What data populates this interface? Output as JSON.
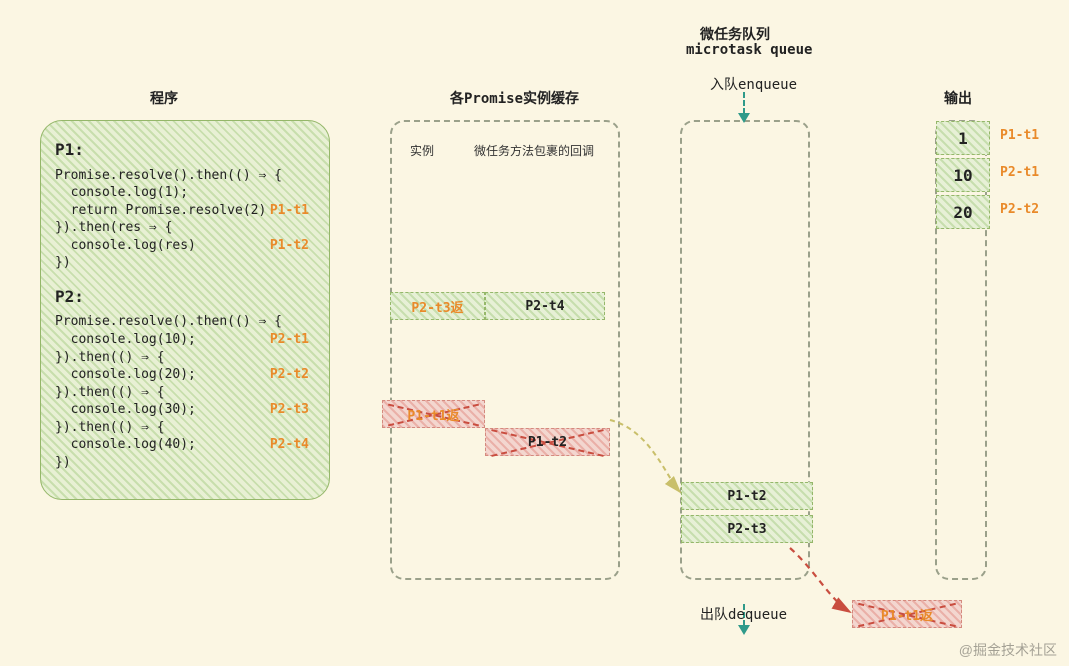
{
  "colors": {
    "bg": "#fbf6e3",
    "greenFill": "#e7f0d6",
    "greenBorder": "#95b76a",
    "redFill": "#f3d6cf",
    "redBorder": "#d48a7e",
    "orange": "#e98a2a",
    "dash": "#9aa08a",
    "teal": "#2f9a8a",
    "redDash": "#c94d3f",
    "yellowDash": "#c9bf6a"
  },
  "titles": {
    "program": "程序",
    "cache": "各Promise实例缓存",
    "queueZh": "微任务队列",
    "queueEn": "microtask queue",
    "enqueue": "入队enqueue",
    "dequeue": "出队dequeue",
    "output": "输出",
    "instance": "实例",
    "callback": "微任务方法包裹的回调"
  },
  "program": {
    "p1": {
      "header": "P1:",
      "lines": [
        {
          "text": "Promise.resolve().then(() ⇒ {"
        },
        {
          "text": "  console.log(1);"
        },
        {
          "text": "  return Promise.resolve(2)",
          "tag": "P1-t1"
        },
        {
          "text": "}).then(res ⇒ {"
        },
        {
          "text": "  console.log(res)",
          "tag": "P1-t2"
        },
        {
          "text": "})"
        }
      ]
    },
    "p2": {
      "header": "P2:",
      "lines": [
        {
          "text": "Promise.resolve().then(() ⇒ {"
        },
        {
          "text": "  console.log(10);",
          "tag": "P2-t1"
        },
        {
          "text": "}).then(() ⇒ {"
        },
        {
          "text": "  console.log(20);",
          "tag": "P2-t2"
        },
        {
          "text": "}).then(() ⇒ {"
        },
        {
          "text": "  console.log(30);",
          "tag": "P2-t3"
        },
        {
          "text": "}).then(() ⇒ {"
        },
        {
          "text": "  console.log(40);",
          "tag": "P2-t4"
        },
        {
          "text": "})"
        }
      ]
    }
  },
  "cache": {
    "row1": {
      "left": "P2-t3返",
      "right": "P2-t4",
      "leftStyle": "green-orange",
      "rightStyle": "green"
    },
    "row2": {
      "left": "P1-t1返",
      "right": "P1-t2",
      "leftStyle": "red",
      "rightStyle": "red-black"
    }
  },
  "queue": {
    "items": [
      {
        "label": "P1-t2"
      },
      {
        "label": "P2-t3"
      }
    ]
  },
  "dequeued": {
    "label": "P1-t1返"
  },
  "output": {
    "rows": [
      {
        "value": "1",
        "tag": "P1-t1"
      },
      {
        "value": "10",
        "tag": "P2-t1"
      },
      {
        "value": "20",
        "tag": "P2-t2"
      }
    ]
  },
  "watermark": "@掘金技术社区"
}
